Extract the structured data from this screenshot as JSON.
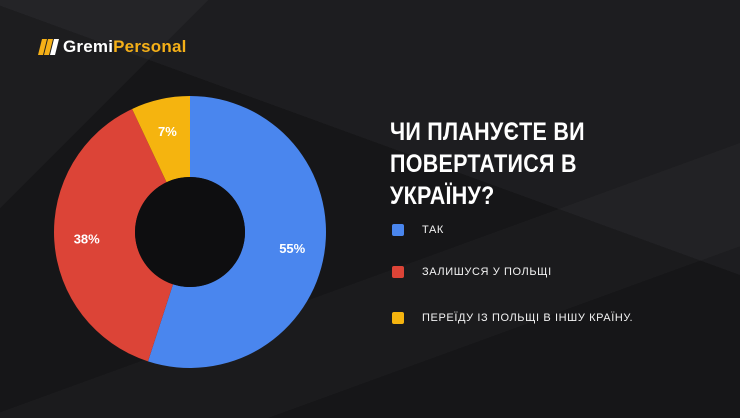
{
  "logo": {
    "part1": "Gremi",
    "part2": "Personal"
  },
  "colors": {
    "blue": "#4a86ee",
    "red": "#dc4437",
    "yellow": "#f5b40f",
    "brand": "#f5b018"
  },
  "chart_data": {
    "type": "pie",
    "donut": true,
    "title": "ЧИ ПЛАНУЄТЕ ВИ ПОВЕРТАТИСЯ В УКРАЇНУ?",
    "categories": [
      "ТАК",
      "ЗАЛИШУСЯ У ПОЛЬЩІ",
      "ПЕРЕЇДУ ІЗ ПОЛЬЩІ В ІНШУ КРАЇНУ."
    ],
    "values": [
      55,
      38,
      7
    ],
    "labels": [
      "55%",
      "38%",
      "7%"
    ],
    "colors": [
      "#4a86ee",
      "#dc4437",
      "#f5b40f"
    ],
    "legend": "right"
  }
}
